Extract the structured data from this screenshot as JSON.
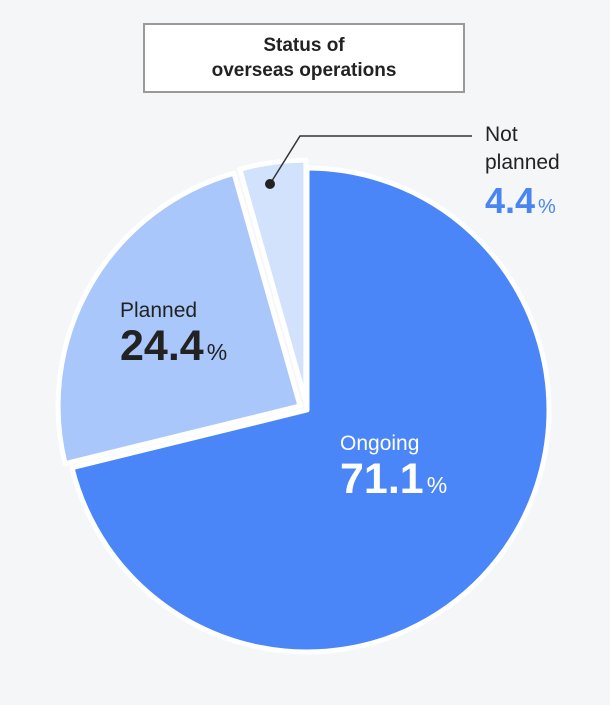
{
  "chart_data": {
    "type": "pie",
    "title_line1": "Status of",
    "title_line2": "overseas operations",
    "unit": "%",
    "slices": [
      {
        "label": "Ongoing",
        "value": 71.1,
        "color": "#4a86f7"
      },
      {
        "label": "Planned",
        "value": 24.4,
        "color": "#a9c7fb"
      },
      {
        "label": "Not planned",
        "label_line1": "Not",
        "label_line2": "planned",
        "value": 4.4,
        "color": "#d2e2fc"
      }
    ]
  }
}
